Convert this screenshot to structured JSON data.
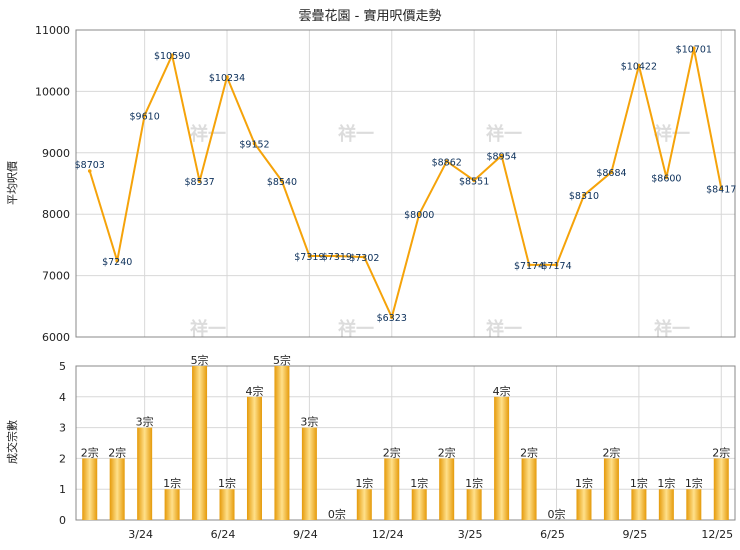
{
  "colors": {
    "line": "#f5a30a",
    "bar_dark": "#e59a0a",
    "bar_light": "#ffe08a",
    "grid": "#d8d8d8",
    "frame": "#888888"
  },
  "watermark": "祥一",
  "chart_data": [
    {
      "type": "line",
      "title": "雲疊花園 - 實用呎價走勢",
      "ylabel": "平均呎價",
      "ylim": [
        6000,
        11000
      ],
      "yticks": [
        "6000",
        "7000",
        "8000",
        "9000",
        "10000",
        "11000"
      ],
      "xtick_labels": [
        "3/24",
        "6/24",
        "9/24",
        "12/24",
        "3/25",
        "6/25",
        "9/25",
        "12/25"
      ],
      "series": [
        {
          "values": [
            8703,
            7240,
            9610,
            10590,
            8537,
            10234,
            9152,
            8540,
            7319,
            7319,
            7302,
            6323,
            8000,
            8862,
            8551,
            8954,
            7174,
            7174,
            8310,
            8684,
            10422,
            8600,
            10701,
            8417
          ],
          "labels": [
            "$8703",
            "$7240",
            "$9610",
            "$10590",
            "$8537",
            "$10234",
            "$9152",
            "$8540",
            "$7319",
            "$7319",
            "$7302",
            "$6323",
            "$8000",
            "$8862",
            "$8551",
            "$8954",
            "$7174",
            "$7174",
            "$8310",
            "$8684",
            "$10422",
            "$8600",
            "$10701",
            "$8417"
          ]
        }
      ]
    },
    {
      "type": "bar",
      "ylabel": "成交宗數",
      "ylim": [
        0,
        5
      ],
      "yticks": [
        "0",
        "1",
        "2",
        "3",
        "4",
        "5"
      ],
      "xtick_labels": [
        "3/24",
        "6/24",
        "9/24",
        "12/24",
        "3/25",
        "6/25",
        "9/25",
        "12/25"
      ],
      "values": [
        2,
        2,
        3,
        1,
        5,
        1,
        4,
        5,
        3,
        0,
        1,
        2,
        1,
        2,
        1,
        4,
        2,
        0,
        1,
        2,
        1,
        1,
        1,
        2
      ],
      "labels": [
        "2宗",
        "2宗",
        "3宗",
        "1宗",
        "5宗",
        "1宗",
        "4宗",
        "5宗",
        "3宗",
        "0宗",
        "1宗",
        "2宗",
        "1宗",
        "2宗",
        "1宗",
        "4宗",
        "2宗",
        "0宗",
        "1宗",
        "2宗",
        "1宗",
        "1宗",
        "1宗",
        "2宗"
      ]
    }
  ]
}
